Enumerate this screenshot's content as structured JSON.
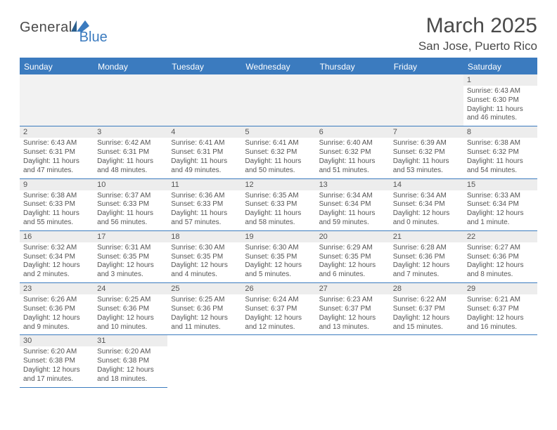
{
  "brand": {
    "part1": "General",
    "part2": "Blue"
  },
  "title": {
    "month": "March 2025",
    "location": "San Jose, Puerto Rico"
  },
  "colors": {
    "accent": "#3b7bbf",
    "header_bg": "#3b7bbf",
    "header_text": "#ffffff",
    "daynum_bg": "#ededed",
    "empty_bg": "#f2f2f2",
    "body_text": "#555555",
    "page_bg": "#ffffff"
  },
  "day_headers": [
    "Sunday",
    "Monday",
    "Tuesday",
    "Wednesday",
    "Thursday",
    "Friday",
    "Saturday"
  ],
  "grid": {
    "leading_empty": 6,
    "trailing_empty": 5,
    "days": [
      {
        "n": "1",
        "sunrise": "6:43 AM",
        "sunset": "6:30 PM",
        "daylight": "11 hours and 46 minutes."
      },
      {
        "n": "2",
        "sunrise": "6:43 AM",
        "sunset": "6:31 PM",
        "daylight": "11 hours and 47 minutes."
      },
      {
        "n": "3",
        "sunrise": "6:42 AM",
        "sunset": "6:31 PM",
        "daylight": "11 hours and 48 minutes."
      },
      {
        "n": "4",
        "sunrise": "6:41 AM",
        "sunset": "6:31 PM",
        "daylight": "11 hours and 49 minutes."
      },
      {
        "n": "5",
        "sunrise": "6:41 AM",
        "sunset": "6:32 PM",
        "daylight": "11 hours and 50 minutes."
      },
      {
        "n": "6",
        "sunrise": "6:40 AM",
        "sunset": "6:32 PM",
        "daylight": "11 hours and 51 minutes."
      },
      {
        "n": "7",
        "sunrise": "6:39 AM",
        "sunset": "6:32 PM",
        "daylight": "11 hours and 53 minutes."
      },
      {
        "n": "8",
        "sunrise": "6:38 AM",
        "sunset": "6:32 PM",
        "daylight": "11 hours and 54 minutes."
      },
      {
        "n": "9",
        "sunrise": "6:38 AM",
        "sunset": "6:33 PM",
        "daylight": "11 hours and 55 minutes."
      },
      {
        "n": "10",
        "sunrise": "6:37 AM",
        "sunset": "6:33 PM",
        "daylight": "11 hours and 56 minutes."
      },
      {
        "n": "11",
        "sunrise": "6:36 AM",
        "sunset": "6:33 PM",
        "daylight": "11 hours and 57 minutes."
      },
      {
        "n": "12",
        "sunrise": "6:35 AM",
        "sunset": "6:33 PM",
        "daylight": "11 hours and 58 minutes."
      },
      {
        "n": "13",
        "sunrise": "6:34 AM",
        "sunset": "6:34 PM",
        "daylight": "11 hours and 59 minutes."
      },
      {
        "n": "14",
        "sunrise": "6:34 AM",
        "sunset": "6:34 PM",
        "daylight": "12 hours and 0 minutes."
      },
      {
        "n": "15",
        "sunrise": "6:33 AM",
        "sunset": "6:34 PM",
        "daylight": "12 hours and 1 minute."
      },
      {
        "n": "16",
        "sunrise": "6:32 AM",
        "sunset": "6:34 PM",
        "daylight": "12 hours and 2 minutes."
      },
      {
        "n": "17",
        "sunrise": "6:31 AM",
        "sunset": "6:35 PM",
        "daylight": "12 hours and 3 minutes."
      },
      {
        "n": "18",
        "sunrise": "6:30 AM",
        "sunset": "6:35 PM",
        "daylight": "12 hours and 4 minutes."
      },
      {
        "n": "19",
        "sunrise": "6:30 AM",
        "sunset": "6:35 PM",
        "daylight": "12 hours and 5 minutes."
      },
      {
        "n": "20",
        "sunrise": "6:29 AM",
        "sunset": "6:35 PM",
        "daylight": "12 hours and 6 minutes."
      },
      {
        "n": "21",
        "sunrise": "6:28 AM",
        "sunset": "6:36 PM",
        "daylight": "12 hours and 7 minutes."
      },
      {
        "n": "22",
        "sunrise": "6:27 AM",
        "sunset": "6:36 PM",
        "daylight": "12 hours and 8 minutes."
      },
      {
        "n": "23",
        "sunrise": "6:26 AM",
        "sunset": "6:36 PM",
        "daylight": "12 hours and 9 minutes."
      },
      {
        "n": "24",
        "sunrise": "6:25 AM",
        "sunset": "6:36 PM",
        "daylight": "12 hours and 10 minutes."
      },
      {
        "n": "25",
        "sunrise": "6:25 AM",
        "sunset": "6:36 PM",
        "daylight": "12 hours and 11 minutes."
      },
      {
        "n": "26",
        "sunrise": "6:24 AM",
        "sunset": "6:37 PM",
        "daylight": "12 hours and 12 minutes."
      },
      {
        "n": "27",
        "sunrise": "6:23 AM",
        "sunset": "6:37 PM",
        "daylight": "12 hours and 13 minutes."
      },
      {
        "n": "28",
        "sunrise": "6:22 AM",
        "sunset": "6:37 PM",
        "daylight": "12 hours and 15 minutes."
      },
      {
        "n": "29",
        "sunrise": "6:21 AM",
        "sunset": "6:37 PM",
        "daylight": "12 hours and 16 minutes."
      },
      {
        "n": "30",
        "sunrise": "6:20 AM",
        "sunset": "6:38 PM",
        "daylight": "12 hours and 17 minutes."
      },
      {
        "n": "31",
        "sunrise": "6:20 AM",
        "sunset": "6:38 PM",
        "daylight": "12 hours and 18 minutes."
      }
    ]
  },
  "labels": {
    "sunrise": "Sunrise:",
    "sunset": "Sunset:",
    "daylight": "Daylight:"
  }
}
